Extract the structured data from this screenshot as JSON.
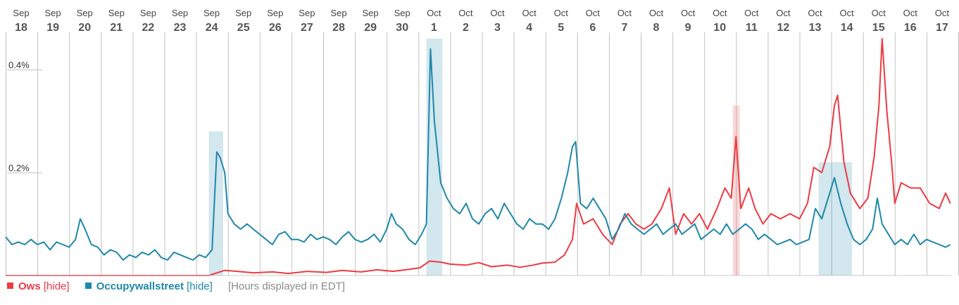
{
  "chart_data": {
    "type": "line",
    "x_dates": [
      "Sep 18",
      "Sep 19",
      "Sep 20",
      "Sep 21",
      "Sep 22",
      "Sep 23",
      "Sep 24",
      "Sep 25",
      "Sep 26",
      "Sep 27",
      "Sep 28",
      "Sep 29",
      "Sep 30",
      "Oct 1",
      "Oct 2",
      "Oct 3",
      "Oct 4",
      "Oct 5",
      "Oct 6",
      "Oct 7",
      "Oct 8",
      "Oct 9",
      "Oct 10",
      "Oct 11",
      "Oct 12",
      "Oct 13",
      "Oct 14",
      "Oct 15",
      "Oct 16",
      "Oct 17"
    ],
    "day_labels": [
      {
        "month": "Sep",
        "day": "18"
      },
      {
        "month": "Sep",
        "day": "19"
      },
      {
        "month": "Sep",
        "day": "20"
      },
      {
        "month": "Sep",
        "day": "21"
      },
      {
        "month": "Sep",
        "day": "22"
      },
      {
        "month": "Sep",
        "day": "23"
      },
      {
        "month": "Sep",
        "day": "24"
      },
      {
        "month": "Sep",
        "day": "25"
      },
      {
        "month": "Sep",
        "day": "26"
      },
      {
        "month": "Sep",
        "day": "27"
      },
      {
        "month": "Sep",
        "day": "28"
      },
      {
        "month": "Sep",
        "day": "29"
      },
      {
        "month": "Sep",
        "day": "30"
      },
      {
        "month": "Oct",
        "day": "1"
      },
      {
        "month": "Oct",
        "day": "2"
      },
      {
        "month": "Oct",
        "day": "3"
      },
      {
        "month": "Oct",
        "day": "4"
      },
      {
        "month": "Oct",
        "day": "5"
      },
      {
        "month": "Oct",
        "day": "6"
      },
      {
        "month": "Oct",
        "day": "7"
      },
      {
        "month": "Oct",
        "day": "8"
      },
      {
        "month": "Oct",
        "day": "9"
      },
      {
        "month": "Oct",
        "day": "10"
      },
      {
        "month": "Oct",
        "day": "11"
      },
      {
        "month": "Oct",
        "day": "12"
      },
      {
        "month": "Oct",
        "day": "13"
      },
      {
        "month": "Oct",
        "day": "14"
      },
      {
        "month": "Oct",
        "day": "15"
      },
      {
        "month": "Oct",
        "day": "16"
      },
      {
        "month": "Oct",
        "day": "17"
      }
    ],
    "y_ticks": [
      {
        "value": 0.2,
        "label": "0.2%"
      },
      {
        "value": 0.4,
        "label": "0.4%"
      }
    ],
    "ylim": [
      0,
      0.46
    ],
    "x_unit": "day index (0 = Sep 18), fractional = hours",
    "series": [
      {
        "name": "Ows",
        "color": "#ec3b43",
        "points": [
          [
            0,
            0
          ],
          [
            6.4,
            0
          ],
          [
            6.55,
            0.003
          ],
          [
            6.9,
            0.01
          ],
          [
            7.3,
            0.008
          ],
          [
            7.8,
            0.005
          ],
          [
            8.4,
            0.007
          ],
          [
            8.9,
            0.004
          ],
          [
            9.5,
            0.008
          ],
          [
            10.1,
            0.006
          ],
          [
            10.6,
            0.01
          ],
          [
            11.2,
            0.007
          ],
          [
            11.7,
            0.011
          ],
          [
            12.2,
            0.008
          ],
          [
            12.7,
            0.012
          ],
          [
            13.05,
            0.015
          ],
          [
            13.35,
            0.028
          ],
          [
            13.7,
            0.026
          ],
          [
            14.0,
            0.022
          ],
          [
            14.5,
            0.02
          ],
          [
            14.9,
            0.025
          ],
          [
            15.3,
            0.017
          ],
          [
            15.8,
            0.02
          ],
          [
            16.2,
            0.016
          ],
          [
            16.6,
            0.02
          ],
          [
            16.9,
            0.024
          ],
          [
            17.3,
            0.026
          ],
          [
            17.6,
            0.04
          ],
          [
            17.85,
            0.07
          ],
          [
            17.98,
            0.14
          ],
          [
            18.2,
            0.1
          ],
          [
            18.5,
            0.11
          ],
          [
            18.8,
            0.08
          ],
          [
            19.1,
            0.06
          ],
          [
            19.35,
            0.1
          ],
          [
            19.6,
            0.12
          ],
          [
            19.85,
            0.1
          ],
          [
            20.1,
            0.09
          ],
          [
            20.35,
            0.1
          ],
          [
            20.65,
            0.13
          ],
          [
            20.9,
            0.17
          ],
          [
            21.1,
            0.08
          ],
          [
            21.35,
            0.12
          ],
          [
            21.6,
            0.1
          ],
          [
            21.85,
            0.12
          ],
          [
            22.1,
            0.09
          ],
          [
            22.4,
            0.13
          ],
          [
            22.65,
            0.17
          ],
          [
            22.85,
            0.15
          ],
          [
            23.0,
            0.27
          ],
          [
            23.15,
            0.13
          ],
          [
            23.4,
            0.17
          ],
          [
            23.6,
            0.13
          ],
          [
            23.85,
            0.1
          ],
          [
            24.1,
            0.12
          ],
          [
            24.4,
            0.11
          ],
          [
            24.7,
            0.12
          ],
          [
            25.0,
            0.11
          ],
          [
            25.25,
            0.14
          ],
          [
            25.45,
            0.21
          ],
          [
            25.7,
            0.2
          ],
          [
            25.95,
            0.25
          ],
          [
            26.1,
            0.33
          ],
          [
            26.2,
            0.35
          ],
          [
            26.4,
            0.22
          ],
          [
            26.6,
            0.16
          ],
          [
            26.9,
            0.13
          ],
          [
            27.15,
            0.15
          ],
          [
            27.35,
            0.23
          ],
          [
            27.5,
            0.33
          ],
          [
            27.6,
            0.46
          ],
          [
            27.75,
            0.32
          ],
          [
            27.9,
            0.22
          ],
          [
            28.0,
            0.14
          ],
          [
            28.2,
            0.18
          ],
          [
            28.5,
            0.17
          ],
          [
            28.8,
            0.17
          ],
          [
            29.1,
            0.14
          ],
          [
            29.4,
            0.13
          ],
          [
            29.6,
            0.16
          ],
          [
            29.75,
            0.14
          ]
        ]
      },
      {
        "name": "Occupywallstreet",
        "color": "#1f88aa",
        "points": [
          [
            0,
            0.075
          ],
          [
            0.2,
            0.06
          ],
          [
            0.4,
            0.065
          ],
          [
            0.6,
            0.06
          ],
          [
            0.8,
            0.07
          ],
          [
            1.0,
            0.06
          ],
          [
            1.2,
            0.065
          ],
          [
            1.4,
            0.05
          ],
          [
            1.6,
            0.065
          ],
          [
            1.8,
            0.06
          ],
          [
            2.0,
            0.055
          ],
          [
            2.2,
            0.07
          ],
          [
            2.35,
            0.11
          ],
          [
            2.5,
            0.09
          ],
          [
            2.7,
            0.06
          ],
          [
            2.9,
            0.055
          ],
          [
            3.1,
            0.04
          ],
          [
            3.3,
            0.05
          ],
          [
            3.5,
            0.045
          ],
          [
            3.7,
            0.03
          ],
          [
            3.9,
            0.04
          ],
          [
            4.1,
            0.035
          ],
          [
            4.3,
            0.045
          ],
          [
            4.5,
            0.04
          ],
          [
            4.7,
            0.05
          ],
          [
            4.9,
            0.035
          ],
          [
            5.1,
            0.03
          ],
          [
            5.3,
            0.045
          ],
          [
            5.5,
            0.04
          ],
          [
            5.7,
            0.035
          ],
          [
            5.9,
            0.03
          ],
          [
            6.1,
            0.04
          ],
          [
            6.3,
            0.035
          ],
          [
            6.5,
            0.05
          ],
          [
            6.65,
            0.24
          ],
          [
            6.75,
            0.23
          ],
          [
            6.9,
            0.2
          ],
          [
            7.0,
            0.12
          ],
          [
            7.2,
            0.1
          ],
          [
            7.4,
            0.09
          ],
          [
            7.6,
            0.1
          ],
          [
            7.8,
            0.09
          ],
          [
            8.0,
            0.08
          ],
          [
            8.2,
            0.07
          ],
          [
            8.4,
            0.06
          ],
          [
            8.6,
            0.08
          ],
          [
            8.8,
            0.085
          ],
          [
            9.0,
            0.07
          ],
          [
            9.2,
            0.07
          ],
          [
            9.4,
            0.065
          ],
          [
            9.6,
            0.08
          ],
          [
            9.8,
            0.07
          ],
          [
            10.0,
            0.075
          ],
          [
            10.2,
            0.07
          ],
          [
            10.4,
            0.06
          ],
          [
            10.6,
            0.075
          ],
          [
            10.8,
            0.085
          ],
          [
            11.0,
            0.07
          ],
          [
            11.2,
            0.065
          ],
          [
            11.4,
            0.07
          ],
          [
            11.6,
            0.08
          ],
          [
            11.8,
            0.065
          ],
          [
            12.0,
            0.09
          ],
          [
            12.15,
            0.12
          ],
          [
            12.3,
            0.1
          ],
          [
            12.5,
            0.09
          ],
          [
            12.7,
            0.07
          ],
          [
            12.9,
            0.06
          ],
          [
            13.1,
            0.08
          ],
          [
            13.25,
            0.1
          ],
          [
            13.38,
            0.44
          ],
          [
            13.5,
            0.3
          ],
          [
            13.7,
            0.18
          ],
          [
            13.9,
            0.15
          ],
          [
            14.1,
            0.13
          ],
          [
            14.3,
            0.12
          ],
          [
            14.5,
            0.14
          ],
          [
            14.7,
            0.11
          ],
          [
            14.9,
            0.1
          ],
          [
            15.1,
            0.12
          ],
          [
            15.3,
            0.13
          ],
          [
            15.5,
            0.11
          ],
          [
            15.7,
            0.14
          ],
          [
            15.9,
            0.12
          ],
          [
            16.1,
            0.1
          ],
          [
            16.3,
            0.09
          ],
          [
            16.5,
            0.11
          ],
          [
            16.7,
            0.1
          ],
          [
            16.9,
            0.1
          ],
          [
            17.1,
            0.09
          ],
          [
            17.3,
            0.11
          ],
          [
            17.5,
            0.15
          ],
          [
            17.7,
            0.2
          ],
          [
            17.85,
            0.25
          ],
          [
            17.95,
            0.26
          ],
          [
            18.1,
            0.14
          ],
          [
            18.3,
            0.13
          ],
          [
            18.5,
            0.15
          ],
          [
            18.7,
            0.13
          ],
          [
            18.9,
            0.11
          ],
          [
            19.1,
            0.07
          ],
          [
            19.3,
            0.09
          ],
          [
            19.5,
            0.12
          ],
          [
            19.7,
            0.1
          ],
          [
            19.9,
            0.09
          ],
          [
            20.1,
            0.08
          ],
          [
            20.3,
            0.09
          ],
          [
            20.5,
            0.1
          ],
          [
            20.7,
            0.08
          ],
          [
            20.9,
            0.09
          ],
          [
            21.1,
            0.1
          ],
          [
            21.3,
            0.08
          ],
          [
            21.5,
            0.09
          ],
          [
            21.7,
            0.1
          ],
          [
            21.9,
            0.07
          ],
          [
            22.1,
            0.08
          ],
          [
            22.3,
            0.09
          ],
          [
            22.5,
            0.08
          ],
          [
            22.7,
            0.1
          ],
          [
            22.9,
            0.08
          ],
          [
            23.1,
            0.09
          ],
          [
            23.3,
            0.1
          ],
          [
            23.5,
            0.09
          ],
          [
            23.7,
            0.07
          ],
          [
            23.9,
            0.08
          ],
          [
            24.1,
            0.07
          ],
          [
            24.3,
            0.06
          ],
          [
            24.5,
            0.065
          ],
          [
            24.7,
            0.07
          ],
          [
            24.9,
            0.06
          ],
          [
            25.1,
            0.065
          ],
          [
            25.3,
            0.07
          ],
          [
            25.5,
            0.13
          ],
          [
            25.7,
            0.11
          ],
          [
            25.9,
            0.15
          ],
          [
            26.1,
            0.19
          ],
          [
            26.3,
            0.14
          ],
          [
            26.5,
            0.1
          ],
          [
            26.7,
            0.07
          ],
          [
            26.9,
            0.06
          ],
          [
            27.1,
            0.07
          ],
          [
            27.3,
            0.09
          ],
          [
            27.45,
            0.15
          ],
          [
            27.6,
            0.1
          ],
          [
            27.8,
            0.08
          ],
          [
            28.0,
            0.06
          ],
          [
            28.2,
            0.07
          ],
          [
            28.4,
            0.06
          ],
          [
            28.6,
            0.08
          ],
          [
            28.8,
            0.06
          ],
          [
            29.0,
            0.07
          ],
          [
            29.2,
            0.065
          ],
          [
            29.4,
            0.06
          ],
          [
            29.6,
            0.055
          ],
          [
            29.75,
            0.06
          ]
        ]
      }
    ],
    "highlights": [
      {
        "series": "Occupywallstreet",
        "x0": 6.4,
        "x1": 6.85,
        "y": 0.28
      },
      {
        "series": "Occupywallstreet",
        "x0": 13.25,
        "x1": 13.75,
        "y": 0.46
      },
      {
        "series": "Ows",
        "x0": 22.9,
        "x1": 23.12,
        "y": 0.33
      },
      {
        "series": "Occupywallstreet",
        "x0": 25.6,
        "x1": 26.65,
        "y": 0.22
      }
    ],
    "legend": {
      "position": "bottom-left",
      "items": [
        {
          "name": "Ows",
          "color": "#ec3b43",
          "toggle": "[hide]"
        },
        {
          "name": "Occupywallstreet",
          "color": "#1f88aa",
          "toggle": "[hide]"
        }
      ],
      "note": "[Hours displayed in EDT]"
    }
  }
}
